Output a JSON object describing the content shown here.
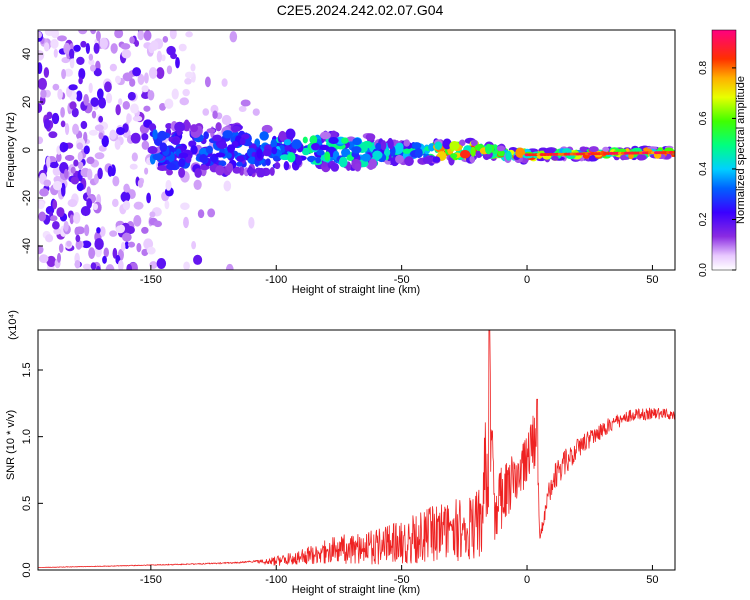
{
  "title": "C2E5.2024.242.02.07.G04",
  "colors": {
    "snr_line": "#ee2222",
    "axis": "#000000"
  },
  "chart_data": [
    {
      "type": "heatmap",
      "xlabel": "Height of straight line (km)",
      "ylabel": "Frequency (Hz)",
      "xlim": [
        -195,
        59
      ],
      "ylim": [
        -50,
        50
      ],
      "x_ticks": [
        -150,
        -100,
        -50,
        0,
        50
      ],
      "y_ticks": [
        -40,
        -20,
        0,
        20,
        40
      ],
      "colorbar": {
        "label": "Normalized spectral amplitude",
        "range": [
          0,
          0.95
        ],
        "ticks": [
          0.0,
          0.2,
          0.4,
          0.6,
          0.8
        ]
      },
      "band_center": [
        {
          "x": -150,
          "y": 0
        },
        {
          "x": -100,
          "y": 0
        },
        {
          "x": -50,
          "y": -1
        },
        {
          "x": -20,
          "y": 0
        },
        {
          "x": 0,
          "y": -2
        },
        {
          "x": 58,
          "y": -1
        }
      ]
    },
    {
      "type": "line",
      "xlabel": "Height of straight line (km)",
      "ylabel": "SNR (10 * v/v)",
      "y_scale_note": "(x10⁴)",
      "xlim": [
        -195,
        59
      ],
      "ylim": [
        0,
        1.8
      ],
      "x_ticks": [
        -150,
        -100,
        -50,
        0,
        50
      ],
      "y_ticks": [
        0.0,
        0.5,
        1.0,
        1.5
      ],
      "series": [
        {
          "points": [
            [
              -195,
              0.02
            ],
            [
              -170,
              0.03
            ],
            [
              -150,
              0.04
            ],
            [
              -130,
              0.05
            ],
            [
              -115,
              0.06
            ],
            [
              -105,
              0.08
            ],
            [
              -95,
              0.13
            ],
            [
              -85,
              0.2
            ],
            [
              -75,
              0.26
            ],
            [
              -65,
              0.3
            ],
            [
              -55,
              0.34
            ],
            [
              -45,
              0.42
            ],
            [
              -35,
              0.5
            ],
            [
              -25,
              0.55
            ],
            [
              -18,
              0.62
            ],
            [
              -15,
              1.8
            ],
            [
              -13,
              0.7
            ],
            [
              -5,
              0.9
            ],
            [
              0,
              1.0
            ],
            [
              4,
              1.28
            ],
            [
              5,
              0.25
            ],
            [
              10,
              0.8
            ],
            [
              20,
              1.0
            ],
            [
              30,
              1.12
            ],
            [
              40,
              1.2
            ],
            [
              50,
              1.22
            ],
            [
              59,
              1.2
            ]
          ],
          "noise_frac": [
            [
              -195,
              0.08
            ],
            [
              -110,
              0.1
            ],
            [
              -100,
              0.45
            ],
            [
              -60,
              0.55
            ],
            [
              -20,
              0.55
            ],
            [
              -5,
              0.3
            ],
            [
              0,
              0.25
            ],
            [
              20,
              0.1
            ],
            [
              40,
              0.05
            ],
            [
              59,
              0.04
            ]
          ]
        }
      ]
    }
  ]
}
